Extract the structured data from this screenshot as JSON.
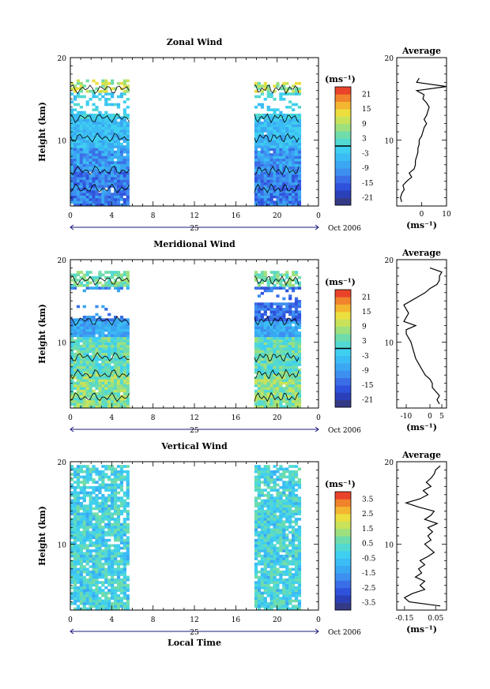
{
  "chart_data": [
    {
      "type": "heatmap",
      "title": "Zonal Wind",
      "ylabel": "Height (km)",
      "xlabel": "",
      "xlim": [
        0,
        24
      ],
      "ylim": [
        2,
        20
      ],
      "xticks": [
        "0",
        "4",
        "8",
        "12",
        "16",
        "20",
        "0"
      ],
      "yticks": [
        "10",
        "20"
      ],
      "date_label": "25",
      "date_suffix": "Oct 2006",
      "colorbar": {
        "unit": "(ms⁻¹)",
        "min": -24,
        "max": 24,
        "ticks": [
          "21",
          "15",
          "9",
          "3",
          "-3",
          "-9",
          "-15",
          "-21"
        ],
        "contour_at": 0
      },
      "data_blocks": [
        {
          "t0": 0,
          "t1": 5.7,
          "h0": 2,
          "h1": 17.2,
          "pattern": "zonal"
        },
        {
          "t0": 17.8,
          "t1": 22.1,
          "h0": 2,
          "h1": 16.8,
          "pattern": "zonal"
        }
      ],
      "profile": {
        "title": "Average",
        "xlabel": "(ms⁻¹)",
        "xlim": [
          -10,
          10
        ],
        "xticks": [
          "0",
          "10"
        ],
        "heights": [
          2.5,
          3,
          3.5,
          4,
          4.5,
          5,
          5.5,
          6,
          6.5,
          7,
          7.5,
          8,
          8.5,
          9,
          9.5,
          10,
          10.5,
          11,
          11.5,
          12,
          12.5,
          13,
          13.5,
          14,
          14.5,
          15,
          15.5,
          16,
          16.5,
          17,
          17.5
        ],
        "values": [
          -8,
          -8.5,
          -8,
          -7,
          -7.5,
          -6,
          -4,
          -5,
          -3,
          -2.5,
          -2.5,
          -2,
          -1.5,
          -1.5,
          -1,
          -1,
          0,
          0.5,
          1,
          2,
          1,
          2,
          2.5,
          3,
          2,
          0.5,
          1,
          -2,
          10,
          -2,
          -1
        ]
      }
    },
    {
      "type": "heatmap",
      "title": "Meridional Wind",
      "ylabel": "Height (km)",
      "xlabel": "",
      "xlim": [
        0,
        24
      ],
      "ylim": [
        2,
        20
      ],
      "xticks": [
        "0",
        "4",
        "8",
        "12",
        "16",
        "20",
        "0"
      ],
      "yticks": [
        "10",
        "20"
      ],
      "date_label": "25",
      "date_suffix": "Oct 2006",
      "colorbar": {
        "unit": "(ms⁻¹)",
        "min": -24,
        "max": 24,
        "ticks": [
          "21",
          "15",
          "9",
          "3",
          "-3",
          "-9",
          "-15",
          "-21"
        ],
        "contour_at": 0
      },
      "data_blocks": [
        {
          "t0": 0,
          "t1": 5.7,
          "h0": 2,
          "h1": 18.5,
          "pattern": "meridional"
        },
        {
          "t0": 17.8,
          "t1": 22.1,
          "h0": 2,
          "h1": 18.4,
          "pattern": "meridional"
        }
      ],
      "profile": {
        "title": "Average",
        "xlabel": "(ms⁻¹)",
        "xlim": [
          -14,
          7
        ],
        "xticks": [
          "-10",
          "0",
          "5"
        ],
        "heights": [
          2.5,
          3,
          3.5,
          4,
          4.5,
          5,
          5.5,
          6,
          6.5,
          7,
          7.5,
          8,
          8.5,
          9,
          9.5,
          10,
          10.5,
          11,
          11.5,
          12,
          12.5,
          13,
          13.5,
          14,
          14.5,
          15,
          15.5,
          16,
          16.5,
          17,
          17.5,
          18,
          18.5,
          19
        ],
        "values": [
          4,
          3,
          4,
          2.5,
          1,
          1,
          0,
          -2,
          -3,
          -4,
          -5,
          -6,
          -6.5,
          -7,
          -7.5,
          -8,
          -9,
          -10,
          -10,
          -6,
          -11,
          -10,
          -9,
          -10,
          -11,
          -8,
          -5,
          -2,
          0,
          3,
          4,
          4,
          5,
          0
        ]
      }
    },
    {
      "type": "heatmap",
      "title": "Vertical Wind",
      "ylabel": "Height (km)",
      "xlabel": "Local Time",
      "xlim": [
        0,
        24
      ],
      "ylim": [
        2,
        20
      ],
      "xticks": [
        "0",
        "4",
        "8",
        "12",
        "16",
        "20",
        "0"
      ],
      "yticks": [
        "10",
        "20"
      ],
      "date_label": "25",
      "date_suffix": "Oct 2006",
      "colorbar": {
        "unit": "(ms⁻¹)",
        "min": -4,
        "max": 4,
        "ticks": [
          "3.5",
          "2.5",
          "1.5",
          "0.5",
          "-0.5",
          "-1.5",
          "-2.5",
          "-3.5"
        ],
        "contour_at": null
      },
      "data_blocks": [
        {
          "t0": 0,
          "t1": 5.7,
          "h0": 2,
          "h1": 19.5,
          "pattern": "vertical"
        },
        {
          "t0": 17.8,
          "t1": 22.1,
          "h0": 2,
          "h1": 19.5,
          "pattern": "vertical"
        }
      ],
      "profile": {
        "title": "Average",
        "xlabel": "(ms⁻¹)",
        "xlim": [
          -0.2,
          0.12
        ],
        "xticks": [
          "-0.15",
          "0.05"
        ],
        "heights": [
          2.5,
          3,
          3.5,
          4,
          4.5,
          5,
          5.5,
          6,
          6.5,
          7,
          7.5,
          8,
          8.5,
          9,
          9.5,
          10,
          10.5,
          11,
          11.5,
          12,
          12.5,
          13,
          13.5,
          14,
          14.5,
          15,
          15.5,
          16,
          16.5,
          17,
          17.5,
          18,
          18.5,
          19,
          19.5
        ],
        "values": [
          0.08,
          -0.12,
          -0.15,
          -0.1,
          -0.02,
          -0.05,
          -0.02,
          -0.08,
          -0.04,
          -0.06,
          -0.02,
          -0.05,
          0.0,
          0.04,
          0.01,
          -0.02,
          0.02,
          0.0,
          0.03,
          0.0,
          0.06,
          -0.02,
          0.02,
          0.04,
          -0.06,
          -0.14,
          -0.05,
          0.0,
          -0.03,
          0.02,
          -0.01,
          0.02,
          0.04,
          0.05,
          0.08
        ]
      }
    }
  ]
}
